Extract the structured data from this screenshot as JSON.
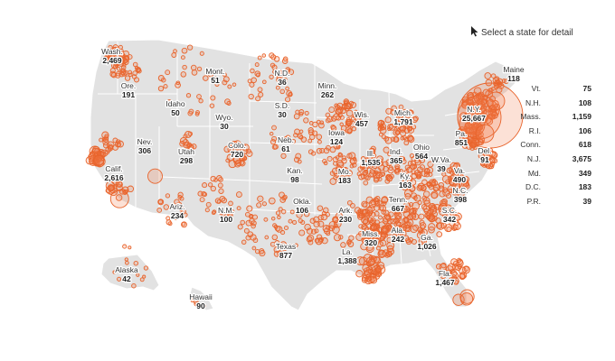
{
  "hint": {
    "text": "Select a state for detail",
    "icon": "cursor-arrow-icon"
  },
  "colors": {
    "land": "#e2e2e2",
    "border": "#ffffff",
    "dot": "#e8642c",
    "dot_fill": "rgba(240,120,70,0.22)"
  },
  "states": [
    {
      "id": "wash",
      "name": "Wash.",
      "value": "2,469"
    },
    {
      "id": "ore",
      "name": "Ore.",
      "value": "191"
    },
    {
      "id": "calif",
      "name": "Calif.",
      "value": "2,616"
    },
    {
      "id": "nev",
      "name": "Nev.",
      "value": "306"
    },
    {
      "id": "idaho",
      "name": "Idaho",
      "value": "50"
    },
    {
      "id": "mont",
      "name": "Mont.",
      "value": "51"
    },
    {
      "id": "wyo",
      "name": "Wyo.",
      "value": "30"
    },
    {
      "id": "utah",
      "name": "Utah",
      "value": "298"
    },
    {
      "id": "ariz",
      "name": "Ariz.",
      "value": "234"
    },
    {
      "id": "colo",
      "name": "Colo.",
      "value": "720"
    },
    {
      "id": "nm",
      "name": "N.M.",
      "value": "100"
    },
    {
      "id": "nd",
      "name": "N.D.",
      "value": "36"
    },
    {
      "id": "sd",
      "name": "S.D.",
      "value": "30"
    },
    {
      "id": "neb",
      "name": "Neb.",
      "value": "61"
    },
    {
      "id": "kan",
      "name": "Kan.",
      "value": "98"
    },
    {
      "id": "okla",
      "name": "Okla.",
      "value": "106"
    },
    {
      "id": "texas",
      "name": "Texas",
      "value": "877"
    },
    {
      "id": "minn",
      "name": "Minn.",
      "value": "262"
    },
    {
      "id": "iowa",
      "name": "Iowa",
      "value": "124"
    },
    {
      "id": "mo",
      "name": "Mo.",
      "value": "183"
    },
    {
      "id": "ark",
      "name": "Ark.",
      "value": "230"
    },
    {
      "id": "la",
      "name": "La.",
      "value": "1,388"
    },
    {
      "id": "wis",
      "name": "Wis.",
      "value": "457"
    },
    {
      "id": "ill",
      "name": "Ill.",
      "value": "1,535"
    },
    {
      "id": "mich",
      "name": "Mich.",
      "value": "1,791"
    },
    {
      "id": "ind",
      "name": "Ind.",
      "value": "365"
    },
    {
      "id": "ohio",
      "name": "Ohio",
      "value": "564"
    },
    {
      "id": "ky",
      "name": "Ky.",
      "value": "163"
    },
    {
      "id": "tenn",
      "name": "Tenn.",
      "value": "667"
    },
    {
      "id": "miss",
      "name": "Miss.",
      "value": "320"
    },
    {
      "id": "ala",
      "name": "Ala.",
      "value": "242"
    },
    {
      "id": "ga",
      "name": "Ga.",
      "value": "1,026"
    },
    {
      "id": "fla",
      "name": "Fla.",
      "value": "1,467"
    },
    {
      "id": "sc",
      "name": "S.C.",
      "value": "342"
    },
    {
      "id": "nc",
      "name": "N.C.",
      "value": "398"
    },
    {
      "id": "va",
      "name": "Va.",
      "value": "490"
    },
    {
      "id": "wva",
      "name": "W.Va.",
      "value": "39"
    },
    {
      "id": "pa",
      "name": "Pa.",
      "value": "851"
    },
    {
      "id": "ny",
      "name": "N.Y.",
      "value": "25,667"
    },
    {
      "id": "del",
      "name": "Del.",
      "value": "91"
    },
    {
      "id": "maine",
      "name": "Maine",
      "value": "118"
    },
    {
      "id": "alaska",
      "name": "Alaska",
      "value": "42"
    },
    {
      "id": "hawaii",
      "name": "Hawaii",
      "value": "90"
    }
  ],
  "northeast": [
    {
      "name": "Vt.",
      "value": "75"
    },
    {
      "name": "N.H.",
      "value": "108"
    },
    {
      "name": "Mass.",
      "value": "1,159"
    },
    {
      "name": "R.I.",
      "value": "106"
    },
    {
      "name": "Conn.",
      "value": "618"
    },
    {
      "name": "N.J.",
      "value": "3,675"
    },
    {
      "name": "Md.",
      "value": "349"
    },
    {
      "name": "D.C.",
      "value": "183"
    },
    {
      "name": "P.R.",
      "value": "39"
    }
  ]
}
